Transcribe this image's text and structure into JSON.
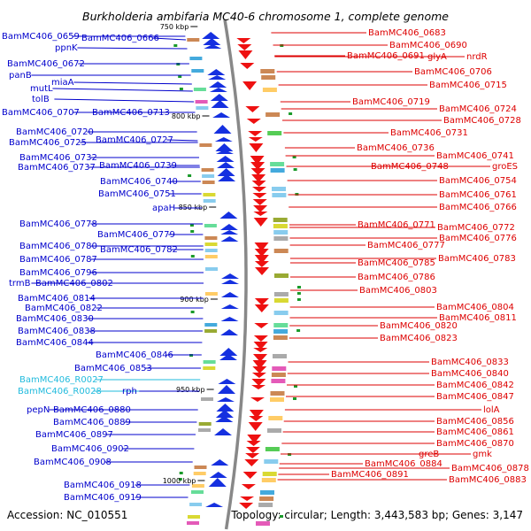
{
  "title": "Burkholderia ambifaria MC40-6 chromosome 1, complete genome",
  "footer": {
    "accession": "Accession: NC_010551",
    "summary": "Topology: circular; Length: 3,443,583 bp; Genes: 3,147"
  },
  "colors": {
    "forward_label": "#0000cc",
    "reverse_label": "#dd0000",
    "rna_label": "#22bbdd",
    "forward_arrow": "#1530e0",
    "reverse_arrow": "#ee1111",
    "backbone": "#888888"
  },
  "scale_ticks": [
    "750 kbp",
    "800 kbp",
    "850 kbp",
    "900 kbp",
    "950 kbp",
    "1000 kbp"
  ],
  "left_labels": [
    {
      "text": "BamMC406_0659",
      "type": "cds"
    },
    {
      "text": "BamMC406_0666",
      "type": "cds"
    },
    {
      "text": "ppnK",
      "type": "cds"
    },
    {
      "text": "BamMC406_0672",
      "type": "cds"
    },
    {
      "text": "panB",
      "type": "cds"
    },
    {
      "text": "miaA",
      "type": "cds"
    },
    {
      "text": "mutL",
      "type": "cds"
    },
    {
      "text": "tolB",
      "type": "cds"
    },
    {
      "text": "BamMC406_0707",
      "type": "cds"
    },
    {
      "text": "BamMC406_0713",
      "type": "cds"
    },
    {
      "text": "BamMC406_0720",
      "type": "cds"
    },
    {
      "text": "BamMC406_0725",
      "type": "cds"
    },
    {
      "text": "BamMC406_0727",
      "type": "cds"
    },
    {
      "text": "BamMC406_0732",
      "type": "cds"
    },
    {
      "text": "BamMC406_0737",
      "type": "cds"
    },
    {
      "text": "BamMC406_0739",
      "type": "cds"
    },
    {
      "text": "BamMC406_0740",
      "type": "cds"
    },
    {
      "text": "BamMC406_0751",
      "type": "cds"
    },
    {
      "text": "apaH",
      "type": "cds"
    },
    {
      "text": "BamMC406_0778",
      "type": "cds"
    },
    {
      "text": "BamMC406_0779",
      "type": "cds"
    },
    {
      "text": "BamMC406_0780",
      "type": "cds"
    },
    {
      "text": "BamMC406_0782",
      "type": "cds"
    },
    {
      "text": "BamMC406_0787",
      "type": "cds"
    },
    {
      "text": "BamMC406_0796",
      "type": "cds"
    },
    {
      "text": "trmB",
      "type": "cds"
    },
    {
      "text": "BamMC406_0802",
      "type": "cds"
    },
    {
      "text": "BamMC406_0814",
      "type": "cds"
    },
    {
      "text": "BamMC406_0822",
      "type": "cds"
    },
    {
      "text": "BamMC406_0830",
      "type": "cds"
    },
    {
      "text": "BamMC406_0838",
      "type": "cds"
    },
    {
      "text": "BamMC406_0844",
      "type": "cds"
    },
    {
      "text": "BamMC406_0846",
      "type": "cds"
    },
    {
      "text": "BamMC406_0853",
      "type": "cds"
    },
    {
      "text": "BamMC406_R0027",
      "type": "rna"
    },
    {
      "text": "BamMC406_R0028",
      "type": "rna"
    },
    {
      "text": "rph",
      "type": "cds"
    },
    {
      "text": "pepN",
      "type": "cds"
    },
    {
      "text": "BamMC406_0880",
      "type": "cds"
    },
    {
      "text": "BamMC406_0889",
      "type": "cds"
    },
    {
      "text": "BamMC406_0897",
      "type": "cds"
    },
    {
      "text": "BamMC406_0902",
      "type": "cds"
    },
    {
      "text": "BamMC406_0908",
      "type": "cds"
    },
    {
      "text": "BamMC406_0918",
      "type": "cds"
    },
    {
      "text": "BamMC406_0919",
      "type": "cds"
    }
  ],
  "right_labels": [
    {
      "text": "BamMC406_0683"
    },
    {
      "text": "BamMC406_0690"
    },
    {
      "text": "BamMC406_0691"
    },
    {
      "text": "glyA"
    },
    {
      "text": "nrdR"
    },
    {
      "text": "BamMC406_0706"
    },
    {
      "text": "BamMC406_0715"
    },
    {
      "text": "BamMC406_0719"
    },
    {
      "text": "BamMC406_0724"
    },
    {
      "text": "BamMC406_0728"
    },
    {
      "text": "BamMC406_0731"
    },
    {
      "text": "BamMC406_0736"
    },
    {
      "text": "BamMC406_0741"
    },
    {
      "text": "BamMC406_0748"
    },
    {
      "text": "groES"
    },
    {
      "text": "BamMC406_0754"
    },
    {
      "text": "BamMC406_0761"
    },
    {
      "text": "BamMC406_0766"
    },
    {
      "text": "BamMC406_0771"
    },
    {
      "text": "BamMC406_0772"
    },
    {
      "text": "BamMC406_0776"
    },
    {
      "text": "BamMC406_0777"
    },
    {
      "text": "BamMC406_0783"
    },
    {
      "text": "BamMC406_0785"
    },
    {
      "text": "BamMC406_0786"
    },
    {
      "text": "BamMC406_0803"
    },
    {
      "text": "BamMC406_0804"
    },
    {
      "text": "BamMC406_0811"
    },
    {
      "text": "BamMC406_0820"
    },
    {
      "text": "BamMC406_0823"
    },
    {
      "text": "BamMC406_0833"
    },
    {
      "text": "BamMC406_0840"
    },
    {
      "text": "BamMC406_0842"
    },
    {
      "text": "BamMC406_0847"
    },
    {
      "text": "lolA"
    },
    {
      "text": "BamMC406_0856"
    },
    {
      "text": "BamMC406_0861"
    },
    {
      "text": "BamMC406_0870"
    },
    {
      "text": "greB"
    },
    {
      "text": "gmk"
    },
    {
      "text": "BamMC406_0878"
    },
    {
      "text": "BamMC406_0884"
    },
    {
      "text": "BamMC406_0883"
    },
    {
      "text": "BamMC406_0891"
    }
  ]
}
